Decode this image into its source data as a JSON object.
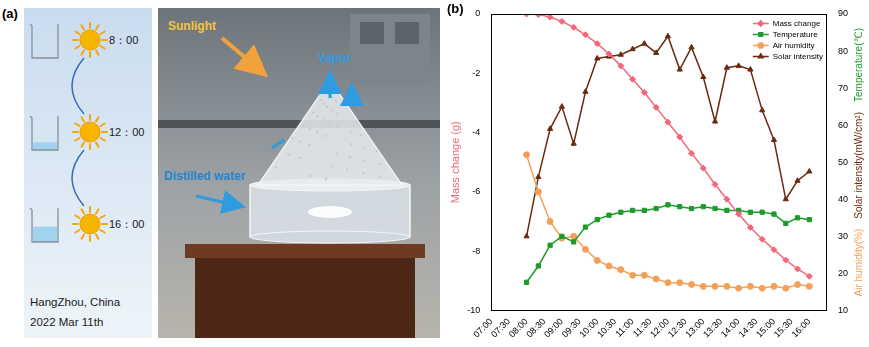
{
  "panel_a": {
    "label": "(a)",
    "schedule": [
      {
        "time": "8：00"
      },
      {
        "time": "12：00"
      },
      {
        "time": "16：00"
      }
    ],
    "location": "HangZhou, China",
    "date": "2022 Mar 11th",
    "photo_labels": {
      "sunlight": "Sunlight",
      "vapor": "Vapor",
      "water": "Distilled water"
    }
  },
  "chart_data": {
    "type": "line",
    "panel_label": "(b)",
    "x": [
      480,
      500,
      520,
      540,
      560,
      580,
      600,
      620,
      640,
      660,
      680,
      700,
      720,
      740,
      760,
      780,
      800,
      820,
      840,
      860,
      880,
      900,
      920,
      940,
      960
    ],
    "xlim": [
      420,
      990
    ],
    "xticks": [
      {
        "value": 420,
        "label": "07:00"
      },
      {
        "value": 450,
        "label": "07:30"
      },
      {
        "value": 480,
        "label": "08:00"
      },
      {
        "value": 510,
        "label": "08:30"
      },
      {
        "value": 540,
        "label": "09:00"
      },
      {
        "value": 570,
        "label": "09:30"
      },
      {
        "value": 600,
        "label": "10:00"
      },
      {
        "value": 630,
        "label": "10:30"
      },
      {
        "value": 660,
        "label": "11:00"
      },
      {
        "value": 690,
        "label": "11:30"
      },
      {
        "value": 720,
        "label": "12:00"
      },
      {
        "value": 750,
        "label": "12:30"
      },
      {
        "value": 780,
        "label": "13:00"
      },
      {
        "value": 810,
        "label": "13:30"
      },
      {
        "value": 840,
        "label": "14:00"
      },
      {
        "value": 870,
        "label": "14:30"
      },
      {
        "value": 900,
        "label": "15:00"
      },
      {
        "value": 930,
        "label": "15:30"
      },
      {
        "value": 960,
        "label": "16:00"
      }
    ],
    "ylabel": "Mass change (g)",
    "ylim": [
      -10,
      0
    ],
    "yticks": [
      -10,
      -8,
      -6,
      -4,
      -2,
      0
    ],
    "y2lim": [
      10,
      90
    ],
    "y2ticks": [
      10,
      20,
      30,
      40,
      50,
      60,
      70,
      80,
      90
    ],
    "grid": false,
    "legend": "top-right",
    "series": [
      {
        "name": "Mass change",
        "color": "#f0697a",
        "marker": "diamond",
        "line_style": "solid",
        "axis": "y",
        "values": [
          0,
          -0.02,
          -0.1,
          -0.25,
          -0.45,
          -0.7,
          -1.0,
          -1.35,
          -1.75,
          -2.2,
          -2.65,
          -3.15,
          -3.65,
          -4.15,
          -4.7,
          -5.2,
          -5.75,
          -6.25,
          -6.75,
          -7.2,
          -7.6,
          -7.95,
          -8.3,
          -8.6,
          -8.85
        ]
      },
      {
        "name": "Temperature",
        "color": "#1e9b2c",
        "marker": "square",
        "line_style": "solid",
        "axis": "y2",
        "axis_label": "Temperature(℃)",
        "values": [
          17.6,
          22,
          27.6,
          30,
          28.5,
          32.5,
          34.5,
          35.7,
          36.5,
          37,
          37,
          37.5,
          38.5,
          38,
          37.5,
          38,
          37.5,
          37,
          37,
          36.5,
          36.5,
          36,
          33.5,
          35,
          34.5
        ]
      },
      {
        "name": "Air humidity",
        "color": "#f3a15a",
        "marker": "circle",
        "line_style": "solid",
        "axis": "y2",
        "axis_label": "Air humidity(%)",
        "values": [
          52,
          42,
          34,
          29.5,
          30,
          26.5,
          23.5,
          22,
          21,
          19.5,
          19.5,
          18.5,
          17.5,
          17.5,
          17,
          16.5,
          16.5,
          16.5,
          16,
          16.5,
          16,
          16.5,
          16,
          17,
          16.5
        ]
      },
      {
        "name": "Solar intensity",
        "color": "#6b2a10",
        "marker": "triangle",
        "line_style": "solid",
        "axis": "y2",
        "axis_label": "Solar intensity(mW/cm²)",
        "values": [
          30,
          46,
          59,
          65,
          55,
          69,
          78,
          78.5,
          79,
          80.5,
          82,
          79.5,
          84,
          75,
          81,
          73,
          61,
          75.5,
          76,
          75,
          64,
          56,
          40,
          45,
          47.5
        ]
      }
    ]
  }
}
